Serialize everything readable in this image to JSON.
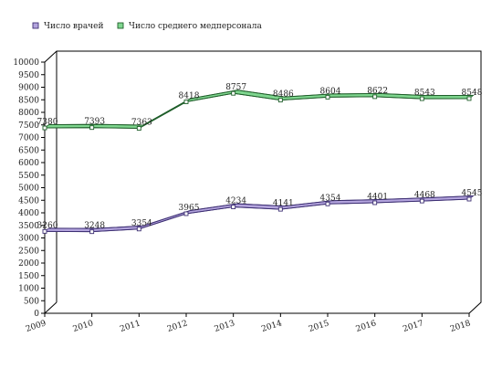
{
  "chart_data": {
    "type": "line",
    "title": "",
    "xlabel": "",
    "ylabel": "",
    "x": [
      "2009",
      "2010",
      "2011",
      "2012",
      "2013",
      "2014",
      "2015",
      "2016",
      "2017",
      "2018"
    ],
    "ylim": [
      0,
      10000
    ],
    "yticks": [
      0,
      500,
      1000,
      1500,
      2000,
      2500,
      3000,
      3500,
      4000,
      4500,
      5000,
      5500,
      6000,
      6500,
      7000,
      7500,
      8000,
      8500,
      9000,
      9500,
      10000
    ],
    "grid": false,
    "legend_position": "top-left",
    "series": [
      {
        "name": "Число врачей",
        "values": [
          3260,
          3248,
          3354,
          3965,
          4234,
          4141,
          4354,
          4401,
          4468,
          4545
        ],
        "fill": "#b3a4dd",
        "stroke": "#3d2f73"
      },
      {
        "name": "Число среднего медперсонала",
        "values": [
          7380,
          7393,
          7363,
          8418,
          8757,
          8486,
          8604,
          8622,
          8543,
          8548
        ],
        "fill": "#7fd68f",
        "stroke": "#1f5e2a"
      }
    ]
  }
}
